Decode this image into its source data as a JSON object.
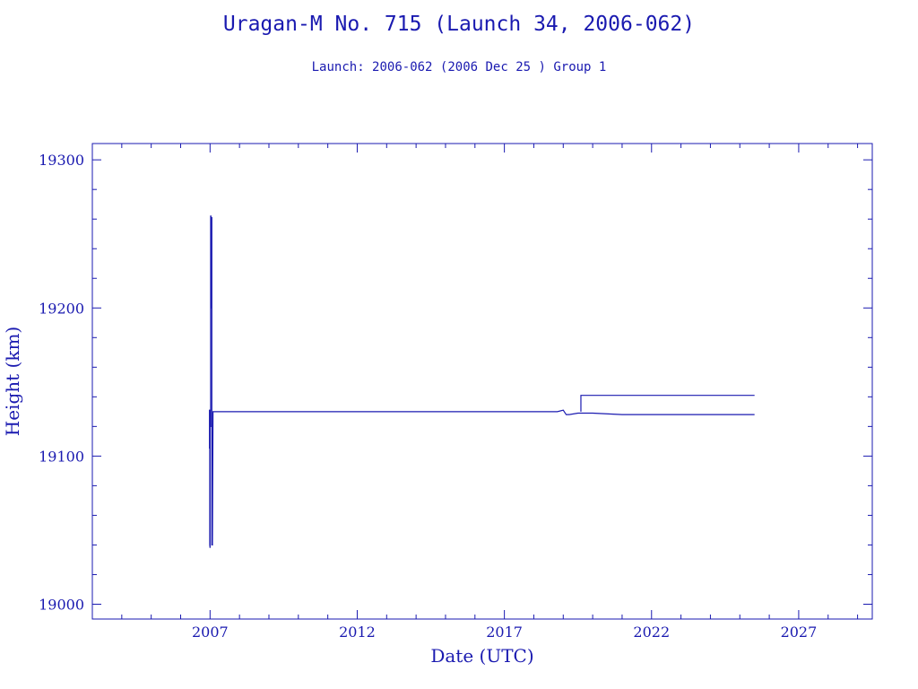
{
  "chart_data": {
    "type": "line",
    "title": "Uragan-M No. 715 (Launch 34, 2006-062)",
    "subtitle": "Launch: 2006-062  (2006 Dec 25 )  Group 1",
    "xlabel": "Date (UTC)",
    "ylabel": "Height (km)",
    "xlim": [
      2003.0,
      2029.5
    ],
    "ylim": [
      18990,
      19311
    ],
    "x_ticks": [
      2007,
      2012,
      2017,
      2022,
      2027
    ],
    "y_ticks": [
      19000,
      19100,
      19200,
      19300
    ],
    "grid": false,
    "color": "#1a1ab0",
    "series": [
      {
        "x": [
          2006.98,
          2006.98,
          2006.99,
          2006.99,
          2007.0,
          2007.0,
          2007.02,
          2007.02,
          2007.03,
          2007.03,
          2007.05,
          2007.05,
          2007.06,
          2007.06,
          2007.08,
          2007.1,
          2010.0,
          2015.0,
          2018.0,
          2018.5,
          2018.8,
          2019.0,
          2019.1,
          2019.2,
          2019.5,
          2020.0,
          2021.0,
          2022.0,
          2023.0,
          2024.0,
          2025.5
        ],
        "y": [
          19105,
          19131,
          19131,
          19040,
          19038,
          19120,
          19120,
          19262,
          19262,
          19200,
          19200,
          19261,
          19261,
          19040,
          19040,
          19130,
          19130,
          19130,
          19130,
          19130,
          19130,
          19131,
          19128,
          19128,
          19129,
          19129,
          19128,
          19128,
          19128,
          19128,
          19128
        ]
      },
      {
        "x": [
          2019.6,
          2019.6,
          2020.5,
          2022.0,
          2024.0,
          2025.5
        ],
        "y": [
          19130,
          19141,
          19141,
          19141,
          19141,
          19141
        ]
      }
    ]
  }
}
